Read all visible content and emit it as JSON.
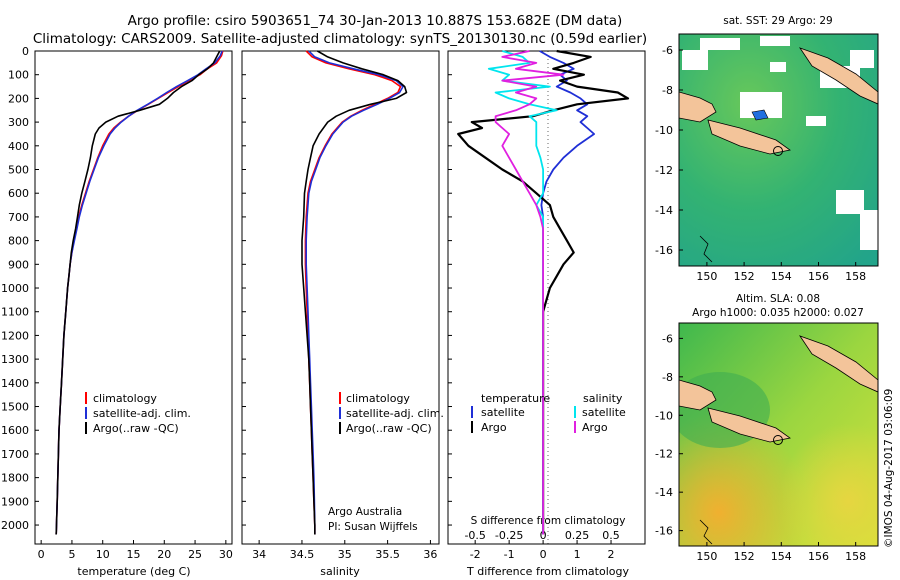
{
  "header": {
    "line1": "Argo profile: csiro 5903651_74 30-Jan-2013 10.887S 153.682E (DM data)",
    "line2": "Climatology: CARS2009. Satellite-adjusted climatology: synTS_20130130.nc (0.59d earlier)"
  },
  "colors": {
    "climatology": "#ff0000",
    "satellite": "#1f2fd6",
    "argo": "#000000",
    "sat_diff_s": "#00e5ee",
    "argo_diff_s": "#e020e0",
    "land": "#f3c49a"
  },
  "depth_axis": {
    "min": 0,
    "max": 2080,
    "ticks": [
      "0",
      "100",
      "200",
      "300",
      "400",
      "500",
      "600",
      "700",
      "800",
      "900",
      "1000",
      "1100",
      "1200",
      "1300",
      "1400",
      "1500",
      "1600",
      "1700",
      "1800",
      "1900",
      "2000"
    ]
  },
  "chart_data": [
    {
      "type": "line",
      "id": "temperature",
      "xlabel": "temperature (deg C)",
      "ylabel": "",
      "xlim": [
        -1,
        31
      ],
      "ylim": [
        2080,
        0
      ],
      "xticks": [
        "0",
        "5",
        "10",
        "15",
        "20",
        "25",
        "30"
      ],
      "legend": [
        "climatology",
        "satellite-adj. clim.",
        "Argo(..raw -QC)"
      ],
      "depths": [
        0,
        20,
        50,
        75,
        100,
        125,
        150,
        175,
        200,
        225,
        250,
        275,
        300,
        325,
        350,
        400,
        450,
        500,
        550,
        600,
        650,
        700,
        750,
        800,
        850,
        900,
        950,
        1000,
        1100,
        1200,
        1300,
        1400,
        1500,
        1600,
        1700,
        1800,
        1900,
        2000,
        2040
      ],
      "series": [
        {
          "name": "climatology",
          "values": [
            29.5,
            29.3,
            28.5,
            27.0,
            25.8,
            24.0,
            22.3,
            20.6,
            19.0,
            17.4,
            15.7,
            14.2,
            12.9,
            11.8,
            11.0,
            10.0,
            9.2,
            8.5,
            7.8,
            7.2,
            6.6,
            6.1,
            5.7,
            5.3,
            5.0,
            4.7,
            4.5,
            4.3,
            4.0,
            3.7,
            3.5,
            3.3,
            3.1,
            2.9,
            2.8,
            2.7,
            2.6,
            2.5,
            2.45
          ]
        },
        {
          "name": "satellite",
          "values": [
            29.4,
            29.1,
            28.2,
            26.8,
            25.5,
            23.8,
            22.0,
            20.4,
            18.9,
            17.3,
            15.6,
            14.2,
            13.0,
            12.0,
            11.2,
            10.2,
            9.3,
            8.6,
            7.9,
            7.3,
            6.7,
            6.2,
            5.8,
            5.4,
            5.0,
            4.7,
            4.5,
            4.3,
            4.0,
            3.7,
            3.5,
            3.3,
            3.1,
            2.9,
            2.8,
            2.7,
            2.6,
            2.5,
            2.45
          ]
        },
        {
          "name": "Argo",
          "values": [
            29.0,
            28.6,
            28.0,
            27.0,
            25.6,
            24.5,
            22.8,
            21.5,
            20.5,
            19.2,
            16.0,
            12.5,
            10.5,
            9.4,
            8.8,
            8.3,
            8.0,
            7.6,
            7.1,
            6.6,
            6.2,
            5.9,
            5.6,
            5.2,
            4.9,
            4.7,
            4.5,
            4.3,
            4.0,
            3.7,
            3.5,
            3.3,
            3.1,
            2.9,
            2.8,
            2.7,
            2.6,
            2.5,
            2.45
          ]
        }
      ]
    },
    {
      "type": "line",
      "id": "salinity",
      "xlabel": "salinity",
      "ylabel": "",
      "xlim": [
        33.8,
        36.1
      ],
      "ylim": [
        2080,
        0
      ],
      "xticks": [
        "34",
        "34.5",
        "35",
        "35.5",
        "36"
      ],
      "legend": [
        "climatology",
        "satellite-adj. clim.",
        "Argo(..raw -QC)"
      ],
      "annotation": [
        "Argo Australia",
        "PI: Susan Wijffels"
      ],
      "depths": [
        0,
        25,
        50,
        75,
        100,
        125,
        150,
        175,
        200,
        225,
        250,
        275,
        300,
        350,
        400,
        450,
        500,
        550,
        600,
        700,
        800,
        900,
        1000,
        1100,
        1200,
        1300,
        1400,
        1500,
        1600,
        1700,
        1800,
        1900,
        2000,
        2040
      ],
      "series": [
        {
          "name": "climatology",
          "values": [
            34.55,
            34.62,
            34.78,
            35.05,
            35.35,
            35.55,
            35.65,
            35.62,
            35.5,
            35.35,
            35.2,
            35.07,
            34.97,
            34.85,
            34.77,
            34.7,
            34.65,
            34.6,
            34.57,
            34.55,
            34.54,
            34.54,
            34.55,
            34.56,
            34.57,
            34.58,
            34.59,
            34.6,
            34.61,
            34.62,
            34.63,
            34.64,
            34.65,
            34.65
          ]
        },
        {
          "name": "satellite",
          "values": [
            34.58,
            34.65,
            34.82,
            35.1,
            35.4,
            35.6,
            35.68,
            35.64,
            35.52,
            35.38,
            35.22,
            35.08,
            34.98,
            34.86,
            34.78,
            34.71,
            34.66,
            34.61,
            34.58,
            34.56,
            34.55,
            34.55,
            34.56,
            34.57,
            34.58,
            34.59,
            34.6,
            34.61,
            34.62,
            34.63,
            34.64,
            34.645,
            34.65,
            34.65
          ]
        },
        {
          "name": "Argo",
          "values": [
            34.68,
            34.8,
            34.98,
            35.2,
            35.45,
            35.62,
            35.7,
            35.72,
            35.6,
            35.3,
            35.05,
            34.9,
            34.8,
            34.7,
            34.63,
            34.6,
            34.57,
            34.55,
            34.53,
            34.52,
            34.5,
            34.5,
            34.52,
            34.54,
            34.56,
            34.58,
            34.59,
            34.6,
            34.61,
            34.62,
            34.63,
            34.64,
            34.65,
            34.65
          ]
        }
      ]
    },
    {
      "type": "line",
      "id": "difference",
      "xlabel": "T difference from climatology",
      "xlabel_top": "S difference from climatology",
      "xlim": [
        -2.8,
        3.0
      ],
      "ylim": [
        2080,
        0
      ],
      "xticks_T": [
        "-2",
        "-1",
        "0",
        "1",
        "2"
      ],
      "xticks_S": [
        "-0.5",
        "-0.25",
        "0",
        "0.25",
        "0.5"
      ],
      "legend_headers": [
        "temperature",
        "salinity"
      ],
      "legend": [
        "satellite",
        "Argo",
        "satellite",
        "Argo"
      ],
      "depths": [
        0,
        25,
        50,
        75,
        100,
        125,
        150,
        175,
        200,
        225,
        250,
        275,
        300,
        325,
        350,
        400,
        450,
        500,
        550,
        600,
        650,
        700,
        750,
        800,
        850,
        900,
        950,
        1000,
        1100,
        1200,
        1400,
        1600,
        1800,
        2000,
        2040
      ],
      "series": [
        {
          "name": "T satellite",
          "values": [
            -0.1,
            0.2,
            0.6,
            0.9,
            0.5,
            0.7,
            0.4,
            0.8,
            1.1,
            1.3,
            1.0,
            1.3,
            1.1,
            1.3,
            1.5,
            1.0,
            0.6,
            0.3,
            0.1,
            0.0,
            -0.05,
            0.0,
            0.0,
            0.0,
            0.0,
            0.0,
            0.0,
            0.0,
            0.0,
            0.0,
            0.0,
            0.0,
            0.0,
            0.0,
            0.0
          ]
        },
        {
          "name": "T Argo",
          "values": [
            0.4,
            1.4,
            0.9,
            0.3,
            1.2,
            0.5,
            1.0,
            2.2,
            2.5,
            1.0,
            0.3,
            -0.3,
            -2.1,
            -1.8,
            -2.5,
            -2.2,
            -1.7,
            -1.2,
            -0.6,
            -0.2,
            0.2,
            0.3,
            0.5,
            0.7,
            0.9,
            0.6,
            0.4,
            0.2,
            0.0,
            0.0,
            0.0,
            0.0,
            0.0,
            0.0,
            0.0
          ]
        },
        {
          "name": "S satellite",
          "values": [
            -0.3,
            -0.15,
            -0.1,
            -0.4,
            -0.25,
            -0.3,
            0.05,
            -0.35,
            -0.25,
            -0.1,
            0.1,
            -0.1,
            -0.05,
            -0.05,
            -0.05,
            -0.05,
            -0.02,
            0.0,
            0.0,
            0.0,
            -0.05,
            0.0,
            0.0,
            0.0,
            0.0,
            0.0,
            0.0,
            0.0,
            0.0,
            0.0,
            0.0,
            0.0,
            0.0,
            0.0,
            0.0
          ]
        },
        {
          "name": "S Argo",
          "values": [
            -0.1,
            -0.3,
            -0.05,
            -0.2,
            0.15,
            -0.3,
            -0.05,
            -0.2,
            -0.05,
            -0.1,
            -0.2,
            -0.35,
            -0.35,
            -0.3,
            -0.25,
            -0.3,
            -0.25,
            -0.2,
            -0.15,
            -0.1,
            -0.05,
            -0.02,
            0.0,
            0.0,
            0.0,
            0.0,
            0.0,
            0.0,
            0.0,
            0.0,
            0.0,
            0.0,
            0.0,
            0.0,
            0.0
          ]
        }
      ]
    }
  ],
  "maps": [
    {
      "id": "sst",
      "title": "sat. SST: 29 Argo: 29",
      "title2": "",
      "yticks": [
        "-6",
        "-8",
        "-10",
        "-12",
        "-14",
        "-16"
      ],
      "xticks": [
        "150",
        "152",
        "154",
        "156",
        "158"
      ]
    },
    {
      "id": "sla",
      "title": "Altim. SLA: 0.08",
      "title2": "Argo h1000: 0.035 h2000: 0.027",
      "yticks": [
        "-6",
        "-8",
        "-10",
        "-12",
        "-14",
        "-16"
      ],
      "xticks": [
        "150",
        "152",
        "154",
        "156",
        "158"
      ]
    }
  ],
  "footer_credit": "©IMOS 04-Aug-2017 03:06:09"
}
